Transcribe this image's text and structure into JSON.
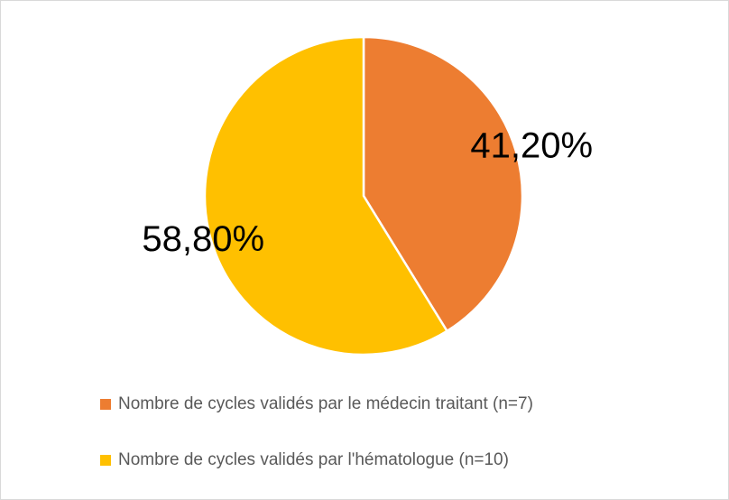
{
  "chart_data": {
    "type": "pie",
    "categories": [
      "Nombre de cycles validés par le médecin traitant (n=7)",
      "Nombre de cycles validés par l'hématologue (n=10)"
    ],
    "values": [
      41.2,
      58.8
    ],
    "value_labels": [
      "41,20%",
      "58,80%"
    ],
    "colors": [
      "#ed7d31",
      "#ffc000"
    ],
    "legend": "bottom"
  }
}
